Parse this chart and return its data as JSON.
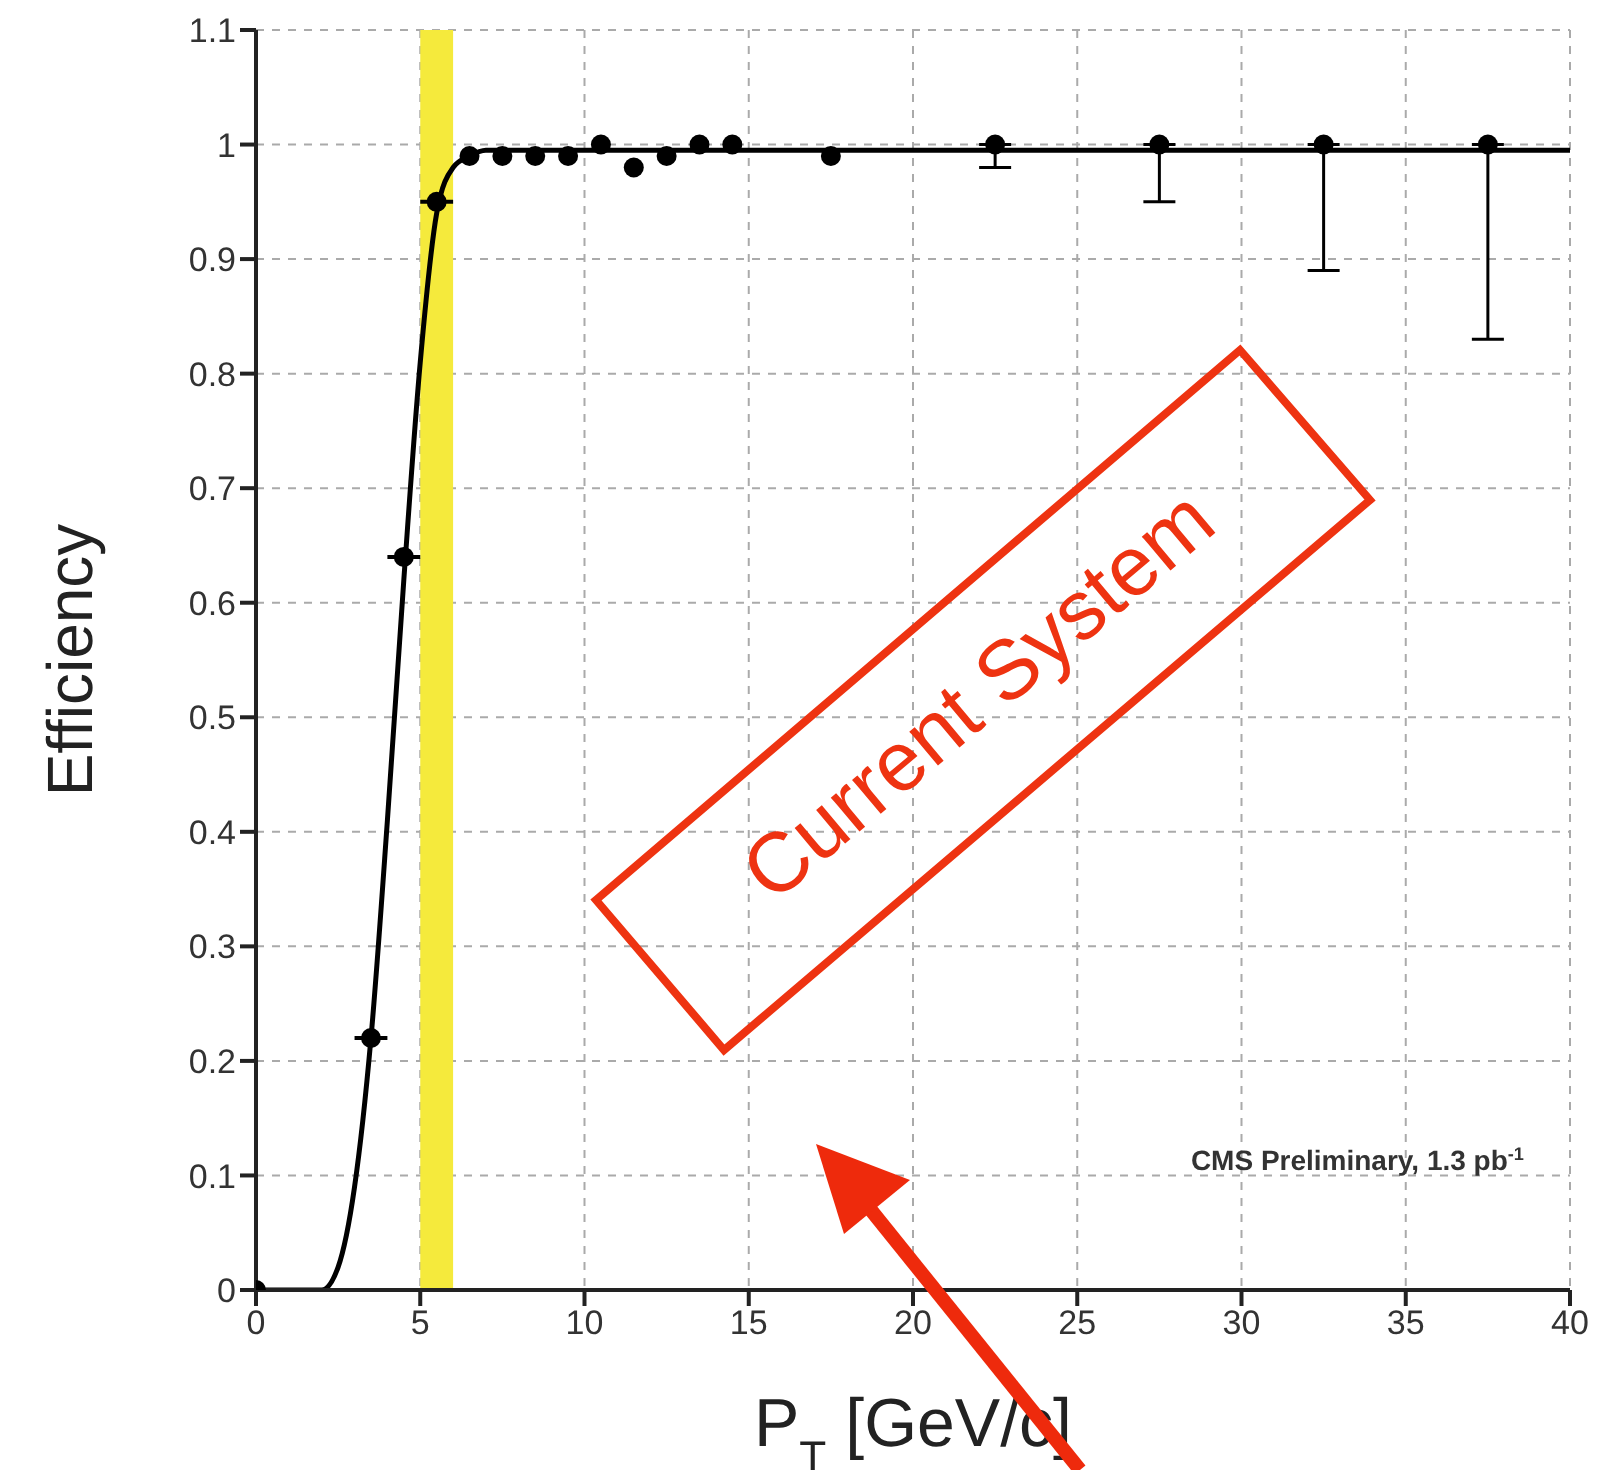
{
  "chart_data": {
    "type": "scatter",
    "xlabel": "P$_{T}$ [GeV/c]",
    "ylabel": "Efficiency",
    "xlim": [
      0,
      40
    ],
    "xticks": [
      0,
      5,
      10,
      15,
      20,
      25,
      30,
      35,
      40
    ],
    "ylim": [
      0,
      1.1
    ],
    "yticks": [
      0,
      0.1,
      0.2,
      0.3,
      0.4,
      0.5,
      0.6,
      0.7,
      0.8,
      0.9,
      1,
      1.1
    ],
    "grid": true,
    "bands": [
      {
        "axis": "x",
        "from": 5,
        "to": 6,
        "color": "#f5ea3c"
      }
    ],
    "series": [
      {
        "color": "#000000",
        "marker": "circle",
        "x": [
          0,
          3.5,
          4.5,
          5.5,
          6.5,
          7.5,
          8.5,
          9.5,
          10.5,
          11.5,
          12.5,
          13.5,
          14.5,
          17.5,
          22.5,
          27.5,
          32.5,
          37.5
        ],
        "values": [
          0,
          0.22,
          0.64,
          0.95,
          0.99,
          0.99,
          0.99,
          0.99,
          1.0,
          0.98,
          0.99,
          1.0,
          1.0,
          0.99,
          1.0,
          1.0,
          1.0,
          1.0
        ],
        "errors": [
          null,
          null,
          null,
          null,
          null,
          null,
          null,
          null,
          null,
          null,
          null,
          null,
          null,
          null,
          [
            0.98,
            1.0
          ],
          [
            0.95,
            1.0
          ],
          [
            0.89,
            1.0
          ],
          [
            0.83,
            1.0
          ]
        ],
        "xerrors": [
          null,
          0.5,
          0.5,
          0.5,
          null,
          null,
          null,
          null,
          null,
          null,
          null,
          null,
          null,
          null,
          null,
          null,
          null,
          null
        ]
      },
      {
        "type": "line",
        "color": "#000000",
        "marker": "none",
        "x": [
          0,
          2,
          2.5,
          3,
          3.5,
          4,
          4.5,
          5,
          5.5,
          6,
          6.5,
          7,
          40
        ],
        "values": [
          0,
          0,
          0.02,
          0.09,
          0.22,
          0.41,
          0.62,
          0.81,
          0.94,
          0.98,
          0.99,
          0.995,
          0.995
        ]
      }
    ],
    "annotations": [
      "CMS Preliminary, 1.3 pb$^{-1}$",
      "Current System"
    ]
  }
}
